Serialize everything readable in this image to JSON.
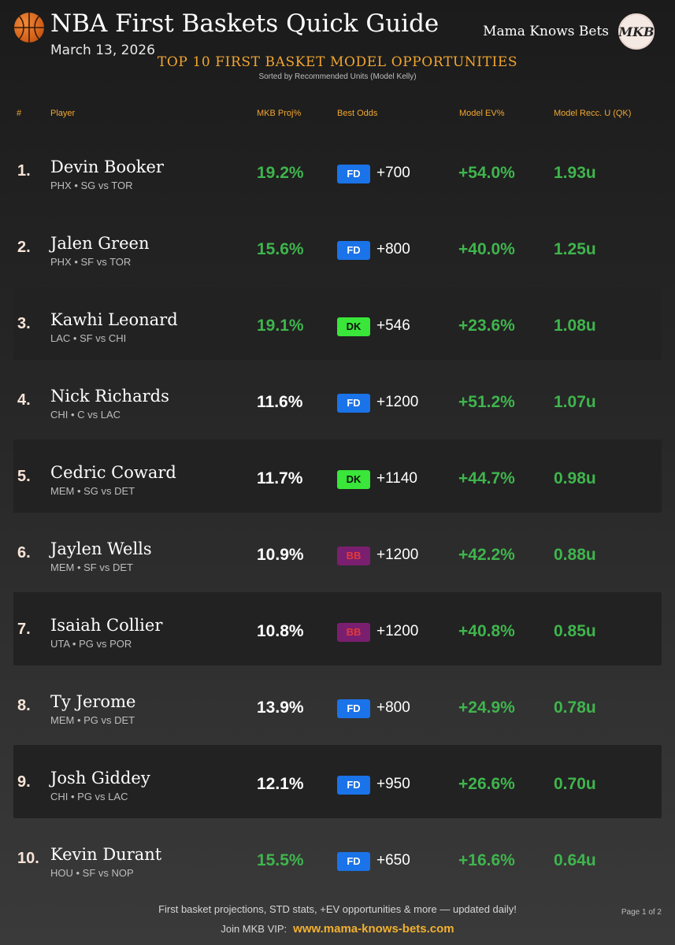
{
  "header": {
    "title": "NBA First Baskets Quick Guide",
    "date": "March 13, 2026",
    "brand": "Mama Knows Bets",
    "brand_monogram": "MKB",
    "subtitle": "TOP 10 FIRST BASKET MODEL OPPORTUNITIES",
    "subsubtitle": "Sorted by Recommended Units (Model Kelly)"
  },
  "columns": {
    "rank": "#",
    "player": "Player",
    "proj": "MKB Proj%",
    "odds": "Best Odds",
    "ev": "Model EV%",
    "units": "Model Recc. U (QK)"
  },
  "colors": {
    "accent": "#f2a630",
    "positive": "#3fb54d",
    "fd_badge": "#1a73e8",
    "dk_badge": "#39e639",
    "bb_badge": "#7a1f6f",
    "bb_text": "#e23a3a"
  },
  "rows": [
    {
      "rank": "1.",
      "name": "Devin Booker",
      "meta": "PHX • SG  vs TOR",
      "proj": "19.2%",
      "proj_highlight": true,
      "book": "FD",
      "odds": "+700",
      "ev": "+54.0%",
      "units": "1.93u",
      "shaded": false
    },
    {
      "rank": "2.",
      "name": "Jalen Green",
      "meta": "PHX • SF  vs TOR",
      "proj": "15.6%",
      "proj_highlight": true,
      "book": "FD",
      "odds": "+800",
      "ev": "+40.0%",
      "units": "1.25u",
      "shaded": false
    },
    {
      "rank": "3.",
      "name": "Kawhi Leonard",
      "meta": "LAC • SF  vs CHI",
      "proj": "19.1%",
      "proj_highlight": true,
      "book": "DK",
      "odds": "+546",
      "ev": "+23.6%",
      "units": "1.08u",
      "shaded": true
    },
    {
      "rank": "4.",
      "name": "Nick Richards",
      "meta": "CHI • C  vs LAC",
      "proj": "11.6%",
      "proj_highlight": false,
      "book": "FD",
      "odds": "+1200",
      "ev": "+51.2%",
      "units": "1.07u",
      "shaded": false
    },
    {
      "rank": "5.",
      "name": "Cedric Coward",
      "meta": "MEM • SG  vs DET",
      "proj": "11.7%",
      "proj_highlight": false,
      "book": "DK",
      "odds": "+1140",
      "ev": "+44.7%",
      "units": "0.98u",
      "shaded": true
    },
    {
      "rank": "6.",
      "name": "Jaylen Wells",
      "meta": "MEM • SF  vs DET",
      "proj": "10.9%",
      "proj_highlight": false,
      "book": "BB",
      "odds": "+1200",
      "ev": "+42.2%",
      "units": "0.88u",
      "shaded": false
    },
    {
      "rank": "7.",
      "name": "Isaiah Collier",
      "meta": "UTA • PG  vs POR",
      "proj": "10.8%",
      "proj_highlight": false,
      "book": "BB",
      "odds": "+1200",
      "ev": "+40.8%",
      "units": "0.85u",
      "shaded": true
    },
    {
      "rank": "8.",
      "name": "Ty Jerome",
      "meta": "MEM • PG  vs DET",
      "proj": "13.9%",
      "proj_highlight": false,
      "book": "FD",
      "odds": "+800",
      "ev": "+24.9%",
      "units": "0.78u",
      "shaded": false
    },
    {
      "rank": "9.",
      "name": "Josh Giddey",
      "meta": "CHI • PG  vs LAC",
      "proj": "12.1%",
      "proj_highlight": false,
      "book": "FD",
      "odds": "+950",
      "ev": "+26.6%",
      "units": "0.70u",
      "shaded": true
    },
    {
      "rank": "10.",
      "name": "Kevin Durant",
      "meta": "HOU • SF  vs NOP",
      "proj": "15.5%",
      "proj_highlight": true,
      "book": "FD",
      "odds": "+650",
      "ev": "+16.6%",
      "units": "0.64u",
      "shaded": false
    }
  ],
  "footer": {
    "line1": "First basket projections, STD stats, +EV opportunities & more — updated daily!",
    "join_label": "Join MKB VIP:",
    "url": "www.mama-knows-bets.com",
    "page": "Page 1 of 2"
  }
}
